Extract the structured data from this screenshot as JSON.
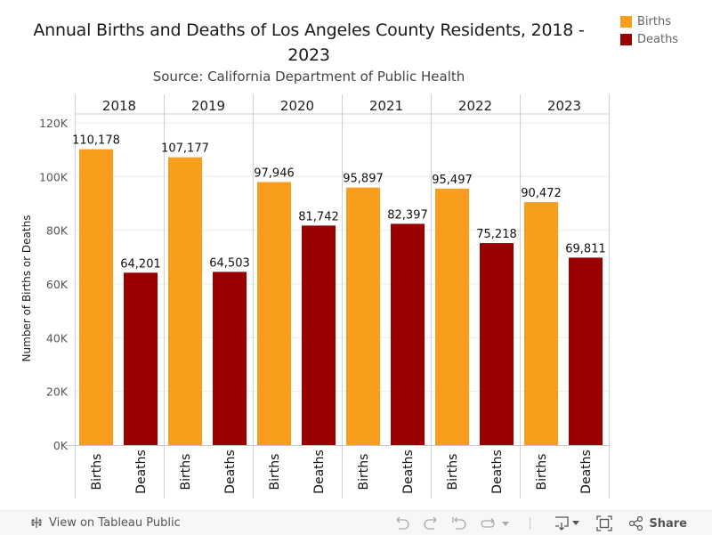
{
  "header": {
    "title_line1": "Annual Births and Deaths of Los Angeles County Residents, 2018 -",
    "title_line2": "2023",
    "subtitle": "Source: California Department of Public Health"
  },
  "legend": {
    "items": [
      {
        "label": "Births",
        "color": "#F99D1C"
      },
      {
        "label": "Deaths",
        "color": "#990000"
      }
    ]
  },
  "chart_data": {
    "type": "bar",
    "title": "Annual Births and Deaths of Los Angeles County Residents, 2018 - 2023",
    "subtitle": "Source: California Department of Public Health",
    "ylabel": "Number of Births or Deaths",
    "xlabel": "",
    "ylim": [
      0,
      120000
    ],
    "yticks": [
      0,
      20000,
      40000,
      60000,
      80000,
      100000,
      120000
    ],
    "ytick_labels": [
      "0K",
      "20K",
      "40K",
      "60K",
      "80K",
      "100K",
      "120K"
    ],
    "grid": true,
    "legend_position": "top-right",
    "categories": [
      "2018",
      "2019",
      "2020",
      "2021",
      "2022",
      "2023"
    ],
    "subcategories": [
      "Births",
      "Deaths"
    ],
    "series": [
      {
        "name": "Births",
        "color": "#F99D1C",
        "values": [
          110178,
          107177,
          97946,
          95897,
          95497,
          90472
        ],
        "labels": [
          "110,178",
          "107,177",
          "97,946",
          "95,897",
          "95,497",
          "90,472"
        ]
      },
      {
        "name": "Deaths",
        "color": "#990000",
        "values": [
          64201,
          64503,
          81742,
          82397,
          75218,
          69811
        ],
        "labels": [
          "64,201",
          "64,503",
          "81,742",
          "82,397",
          "75,218",
          "69,811"
        ]
      }
    ]
  },
  "toolbar": {
    "view_label": "View on Tableau Public",
    "share_label": "Share",
    "icons": [
      "tableau-logo-icon",
      "undo-icon",
      "redo-icon",
      "revert-icon",
      "refresh-icon",
      "dropdown-icon",
      "download-icon",
      "fullscreen-icon",
      "share-icon"
    ]
  }
}
